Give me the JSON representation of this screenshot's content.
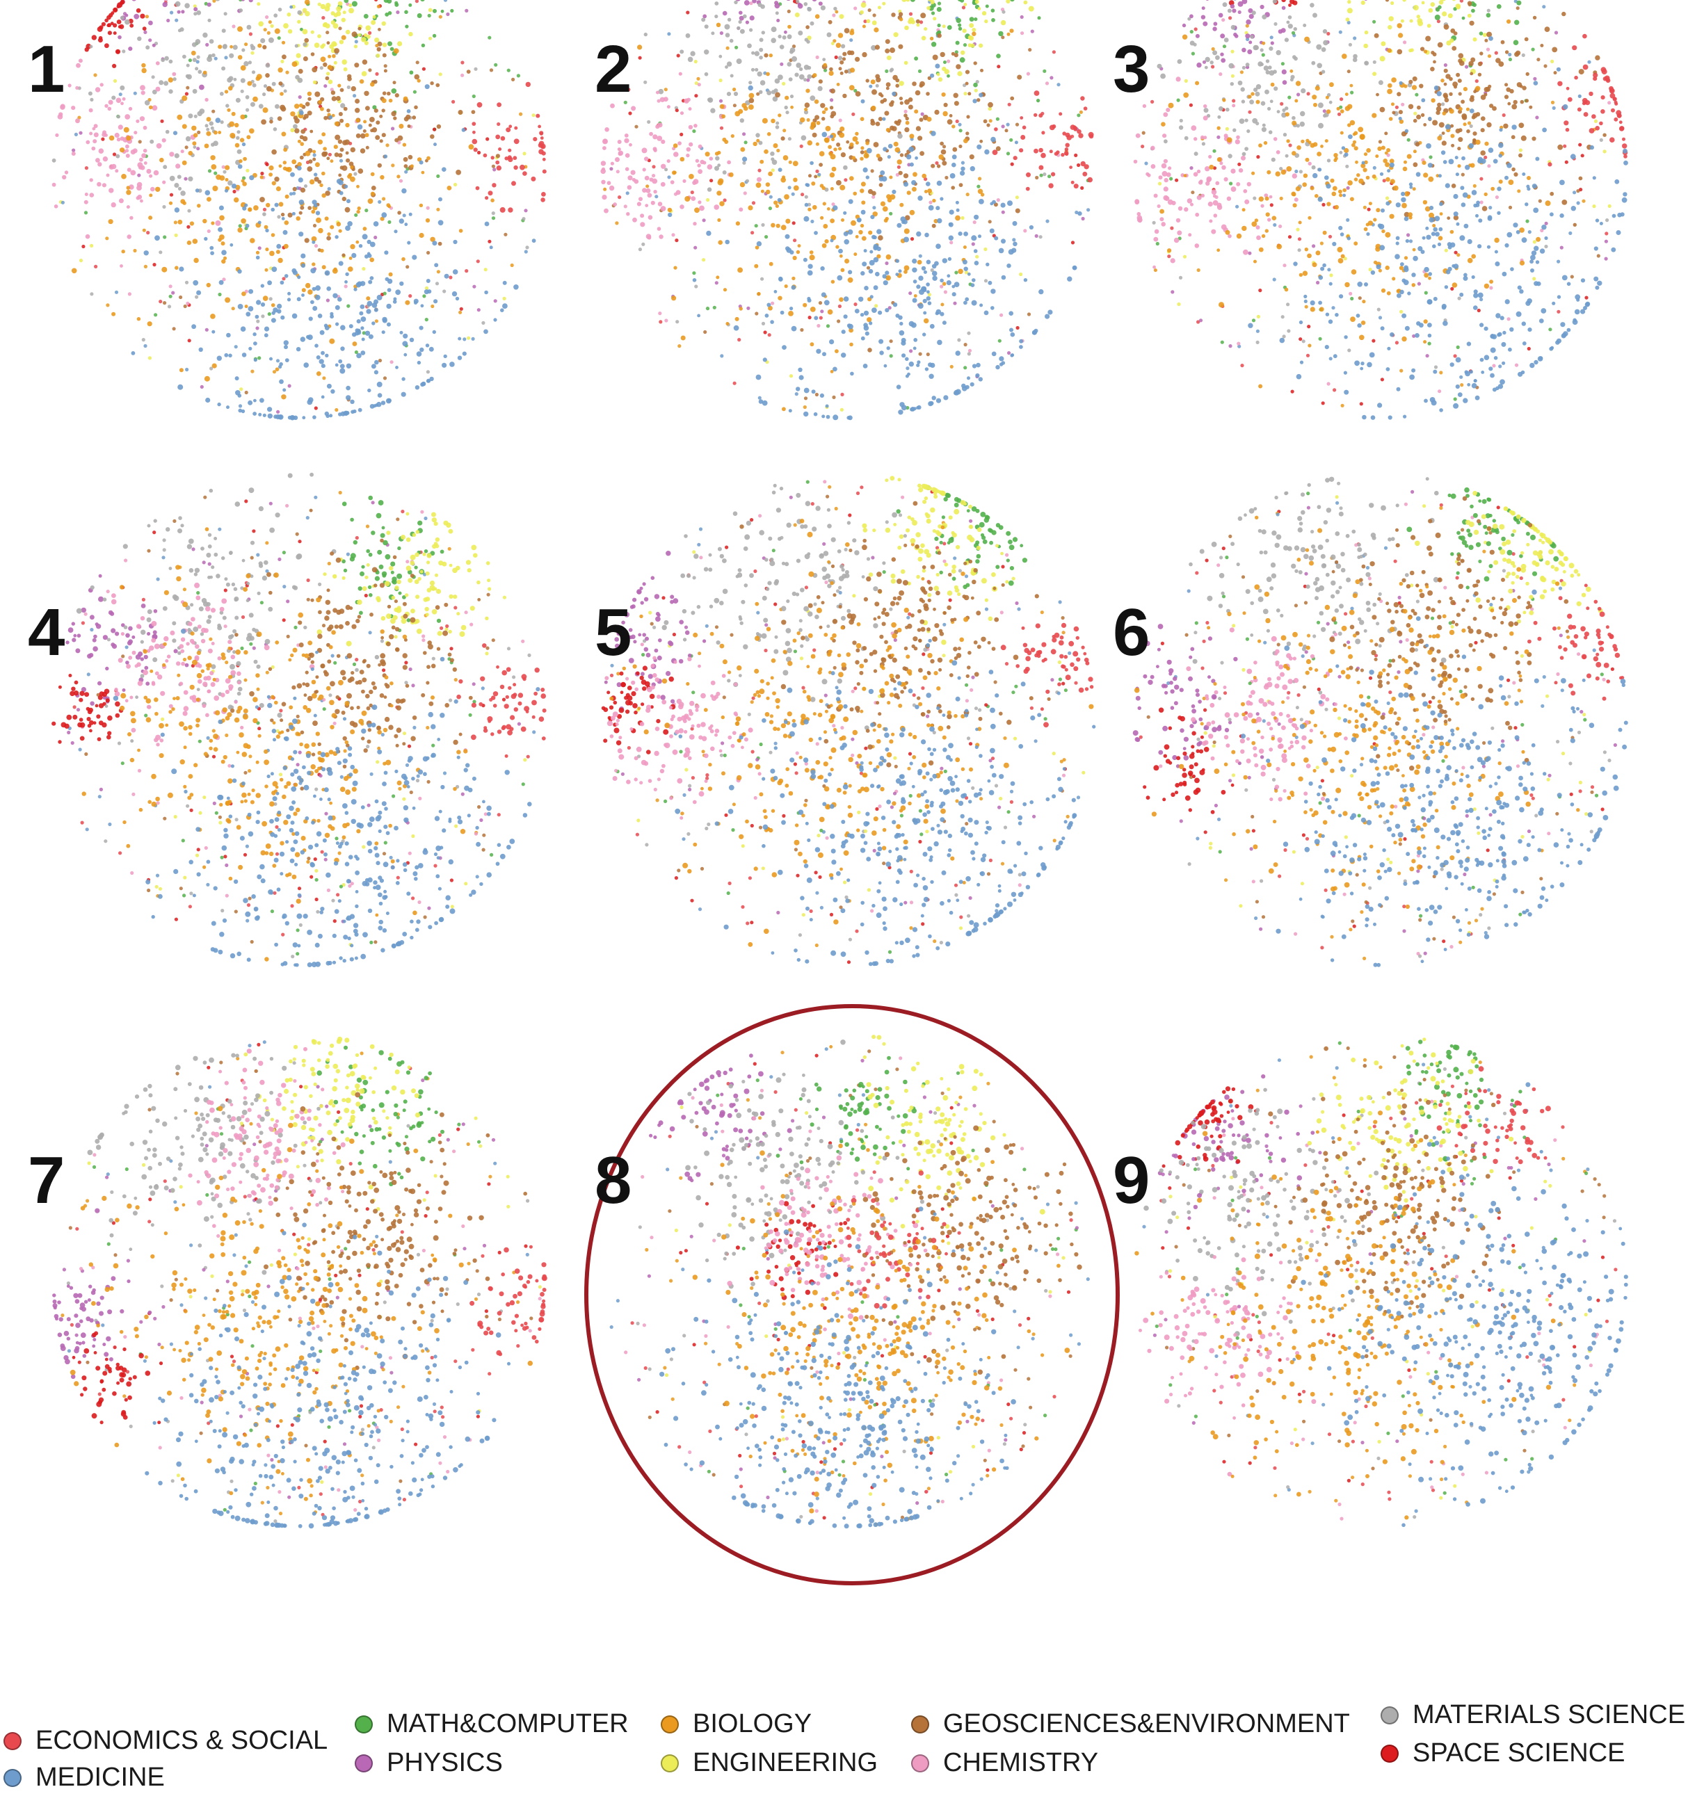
{
  "chart_data": {
    "type": "scatter",
    "title": "",
    "xlabel": "",
    "ylabel": "",
    "grid": false,
    "legend_placement": "bottom",
    "highlighted_panel": "8",
    "categories": [
      {
        "key": "econ",
        "name": "ECONOMICS & SOCIAL",
        "color": "#e8494f"
      },
      {
        "key": "med",
        "name": "MEDICINE",
        "color": "#6e9ccc"
      },
      {
        "key": "math",
        "name": "MATH&COMPUTER",
        "color": "#53b04b"
      },
      {
        "key": "phys",
        "name": "PHYSICS",
        "color": "#b868b4"
      },
      {
        "key": "bio",
        "name": "BIOLOGY",
        "color": "#e99a1f"
      },
      {
        "key": "eng",
        "name": "ENGINEERING",
        "color": "#ecec59"
      },
      {
        "key": "geo",
        "name": "GEOSCIENCES&ENVIRONMENT",
        "color": "#b5733a"
      },
      {
        "key": "chem",
        "name": "CHEMISTRY",
        "color": "#ef9cc3"
      },
      {
        "key": "mat",
        "name": "MATERIALS SCIENCE",
        "color": "#adadad"
      },
      {
        "key": "space",
        "name": "SPACE SCIENCE",
        "color": "#dc1c1e"
      }
    ],
    "panels": [
      {
        "label": "1",
        "clusters": [
          {
            "cat": "phys",
            "x": -0.55,
            "y": 0.78,
            "s": 0.12,
            "n": 70
          },
          {
            "cat": "space",
            "x": -0.75,
            "y": 0.62,
            "s": 0.08,
            "n": 45
          },
          {
            "cat": "math",
            "x": 0.35,
            "y": 0.7,
            "s": 0.14,
            "n": 70
          },
          {
            "cat": "eng",
            "x": 0.15,
            "y": 0.62,
            "s": 0.15,
            "n": 110
          },
          {
            "cat": "mat",
            "x": -0.35,
            "y": 0.35,
            "s": 0.2,
            "n": 130
          },
          {
            "cat": "chem",
            "x": -0.72,
            "y": 0.1,
            "s": 0.14,
            "n": 110
          },
          {
            "cat": "geo",
            "x": 0.2,
            "y": 0.2,
            "s": 0.2,
            "n": 170
          },
          {
            "cat": "bio",
            "x": -0.1,
            "y": -0.05,
            "s": 0.3,
            "n": 260
          },
          {
            "cat": "econ",
            "x": 0.85,
            "y": 0.05,
            "s": 0.1,
            "n": 50
          },
          {
            "cat": "med",
            "x": 0.15,
            "y": -0.55,
            "s": 0.32,
            "n": 330
          }
        ]
      },
      {
        "label": "2",
        "clusters": [
          {
            "cat": "space",
            "x": -0.45,
            "y": 0.88,
            "s": 0.1,
            "n": 55
          },
          {
            "cat": "phys",
            "x": -0.35,
            "y": 0.75,
            "s": 0.12,
            "n": 60
          },
          {
            "cat": "math",
            "x": 0.45,
            "y": 0.65,
            "s": 0.12,
            "n": 60
          },
          {
            "cat": "eng",
            "x": 0.3,
            "y": 0.7,
            "s": 0.18,
            "n": 110
          },
          {
            "cat": "mat",
            "x": -0.3,
            "y": 0.4,
            "s": 0.22,
            "n": 130
          },
          {
            "cat": "chem",
            "x": -0.75,
            "y": 0.05,
            "s": 0.14,
            "n": 110
          },
          {
            "cat": "geo",
            "x": 0.2,
            "y": 0.25,
            "s": 0.2,
            "n": 170
          },
          {
            "cat": "bio",
            "x": -0.1,
            "y": -0.05,
            "s": 0.3,
            "n": 260
          },
          {
            "cat": "econ",
            "x": 0.85,
            "y": 0.12,
            "s": 0.1,
            "n": 50
          },
          {
            "cat": "med",
            "x": 0.25,
            "y": -0.45,
            "s": 0.32,
            "n": 330
          }
        ]
      },
      {
        "label": "3",
        "clusters": [
          {
            "cat": "space",
            "x": -0.4,
            "y": 0.8,
            "s": 0.1,
            "n": 55
          },
          {
            "cat": "phys",
            "x": -0.6,
            "y": 0.65,
            "s": 0.12,
            "n": 60
          },
          {
            "cat": "math",
            "x": 0.4,
            "y": 0.78,
            "s": 0.12,
            "n": 60
          },
          {
            "cat": "eng",
            "x": 0.15,
            "y": 0.75,
            "s": 0.15,
            "n": 110
          },
          {
            "cat": "mat",
            "x": -0.4,
            "y": 0.35,
            "s": 0.2,
            "n": 130
          },
          {
            "cat": "chem",
            "x": -0.7,
            "y": -0.05,
            "s": 0.14,
            "n": 110
          },
          {
            "cat": "geo",
            "x": 0.35,
            "y": 0.3,
            "s": 0.2,
            "n": 170
          },
          {
            "cat": "econ",
            "x": 0.9,
            "y": 0.3,
            "s": 0.1,
            "n": 55
          },
          {
            "cat": "bio",
            "x": -0.1,
            "y": -0.05,
            "s": 0.3,
            "n": 260
          },
          {
            "cat": "med",
            "x": 0.35,
            "y": -0.4,
            "s": 0.32,
            "n": 330
          }
        ]
      },
      {
        "label": "4",
        "clusters": [
          {
            "cat": "phys",
            "x": -0.75,
            "y": 0.3,
            "s": 0.12,
            "n": 60
          },
          {
            "cat": "space",
            "x": -0.85,
            "y": 0.05,
            "s": 0.08,
            "n": 45
          },
          {
            "cat": "math",
            "x": 0.35,
            "y": 0.6,
            "s": 0.12,
            "n": 60
          },
          {
            "cat": "eng",
            "x": 0.5,
            "y": 0.55,
            "s": 0.15,
            "n": 100
          },
          {
            "cat": "mat",
            "x": -0.35,
            "y": 0.45,
            "s": 0.2,
            "n": 130
          },
          {
            "cat": "chem",
            "x": -0.45,
            "y": 0.2,
            "s": 0.14,
            "n": 110
          },
          {
            "cat": "geo",
            "x": 0.25,
            "y": 0.2,
            "s": 0.2,
            "n": 170
          },
          {
            "cat": "econ",
            "x": 0.85,
            "y": 0.05,
            "s": 0.1,
            "n": 50
          },
          {
            "cat": "bio",
            "x": -0.15,
            "y": -0.1,
            "s": 0.3,
            "n": 260
          },
          {
            "cat": "med",
            "x": 0.2,
            "y": -0.55,
            "s": 0.32,
            "n": 330
          }
        ]
      },
      {
        "label": "5",
        "clusters": [
          {
            "cat": "phys",
            "x": -0.8,
            "y": 0.35,
            "s": 0.12,
            "n": 60
          },
          {
            "cat": "space",
            "x": -0.85,
            "y": 0.05,
            "s": 0.08,
            "n": 45
          },
          {
            "cat": "math",
            "x": 0.5,
            "y": 0.75,
            "s": 0.12,
            "n": 60
          },
          {
            "cat": "eng",
            "x": 0.35,
            "y": 0.75,
            "s": 0.15,
            "n": 100
          },
          {
            "cat": "mat",
            "x": -0.3,
            "y": 0.55,
            "s": 0.2,
            "n": 130
          },
          {
            "cat": "chem",
            "x": -0.65,
            "y": -0.05,
            "s": 0.14,
            "n": 110
          },
          {
            "cat": "geo",
            "x": 0.25,
            "y": 0.35,
            "s": 0.2,
            "n": 170
          },
          {
            "cat": "econ",
            "x": 0.85,
            "y": 0.25,
            "s": 0.1,
            "n": 50
          },
          {
            "cat": "bio",
            "x": -0.1,
            "y": -0.05,
            "s": 0.3,
            "n": 260
          },
          {
            "cat": "med",
            "x": 0.3,
            "y": -0.45,
            "s": 0.32,
            "n": 330
          }
        ]
      },
      {
        "label": "6",
        "clusters": [
          {
            "cat": "phys",
            "x": -0.8,
            "y": 0.1,
            "s": 0.12,
            "n": 60
          },
          {
            "cat": "space",
            "x": -0.75,
            "y": -0.2,
            "s": 0.08,
            "n": 45
          },
          {
            "cat": "math",
            "x": 0.45,
            "y": 0.78,
            "s": 0.12,
            "n": 60
          },
          {
            "cat": "eng",
            "x": 0.6,
            "y": 0.65,
            "s": 0.15,
            "n": 100
          },
          {
            "cat": "mat",
            "x": -0.3,
            "y": 0.6,
            "s": 0.2,
            "n": 130
          },
          {
            "cat": "chem",
            "x": -0.45,
            "y": 0.0,
            "s": 0.14,
            "n": 110
          },
          {
            "cat": "geo",
            "x": 0.25,
            "y": 0.35,
            "s": 0.2,
            "n": 170
          },
          {
            "cat": "econ",
            "x": 0.85,
            "y": 0.3,
            "s": 0.1,
            "n": 50
          },
          {
            "cat": "bio",
            "x": -0.05,
            "y": -0.05,
            "s": 0.3,
            "n": 260
          },
          {
            "cat": "med",
            "x": 0.3,
            "y": -0.4,
            "s": 0.32,
            "n": 330
          }
        ]
      },
      {
        "label": "7",
        "clusters": [
          {
            "cat": "phys",
            "x": -0.85,
            "y": -0.15,
            "s": 0.12,
            "n": 60
          },
          {
            "cat": "space",
            "x": -0.75,
            "y": -0.4,
            "s": 0.08,
            "n": 45
          },
          {
            "cat": "math",
            "x": 0.35,
            "y": 0.65,
            "s": 0.12,
            "n": 60
          },
          {
            "cat": "eng",
            "x": 0.15,
            "y": 0.75,
            "s": 0.15,
            "n": 100
          },
          {
            "cat": "mat",
            "x": -0.4,
            "y": 0.55,
            "s": 0.2,
            "n": 130
          },
          {
            "cat": "chem",
            "x": -0.15,
            "y": 0.55,
            "s": 0.14,
            "n": 110
          },
          {
            "cat": "geo",
            "x": 0.3,
            "y": 0.2,
            "s": 0.2,
            "n": 170
          },
          {
            "cat": "econ",
            "x": 0.9,
            "y": -0.1,
            "s": 0.1,
            "n": 50
          },
          {
            "cat": "bio",
            "x": -0.1,
            "y": -0.15,
            "s": 0.3,
            "n": 260
          },
          {
            "cat": "med",
            "x": 0.1,
            "y": -0.6,
            "s": 0.32,
            "n": 330
          }
        ]
      },
      {
        "label": "8",
        "clusters": [
          {
            "cat": "phys",
            "x": -0.55,
            "y": 0.65,
            "s": 0.12,
            "n": 60
          },
          {
            "cat": "space",
            "x": -0.2,
            "y": 0.15,
            "s": 0.1,
            "n": 50
          },
          {
            "cat": "math",
            "x": 0.05,
            "y": 0.65,
            "s": 0.1,
            "n": 60
          },
          {
            "cat": "eng",
            "x": 0.35,
            "y": 0.6,
            "s": 0.15,
            "n": 100
          },
          {
            "cat": "mat",
            "x": -0.3,
            "y": 0.45,
            "s": 0.2,
            "n": 130
          },
          {
            "cat": "chem",
            "x": -0.1,
            "y": 0.15,
            "s": 0.14,
            "n": 110
          },
          {
            "cat": "geo",
            "x": 0.5,
            "y": 0.2,
            "s": 0.2,
            "n": 170
          },
          {
            "cat": "econ",
            "x": 0.15,
            "y": 0.1,
            "s": 0.1,
            "n": 50
          },
          {
            "cat": "bio",
            "x": 0.1,
            "y": -0.2,
            "s": 0.3,
            "n": 260
          },
          {
            "cat": "med",
            "x": -0.05,
            "y": -0.55,
            "s": 0.3,
            "n": 330
          }
        ]
      },
      {
        "label": "9",
        "clusters": [
          {
            "cat": "phys",
            "x": -0.6,
            "y": 0.55,
            "s": 0.12,
            "n": 60
          },
          {
            "cat": "space",
            "x": -0.7,
            "y": 0.65,
            "s": 0.1,
            "n": 55
          },
          {
            "cat": "math",
            "x": 0.3,
            "y": 0.75,
            "s": 0.12,
            "n": 60
          },
          {
            "cat": "eng",
            "x": 0.1,
            "y": 0.65,
            "s": 0.15,
            "n": 100
          },
          {
            "cat": "mat",
            "x": -0.5,
            "y": 0.3,
            "s": 0.2,
            "n": 130
          },
          {
            "cat": "chem",
            "x": -0.6,
            "y": -0.2,
            "s": 0.14,
            "n": 110
          },
          {
            "cat": "geo",
            "x": 0.05,
            "y": 0.3,
            "s": 0.2,
            "n": 170
          },
          {
            "cat": "econ",
            "x": 0.5,
            "y": 0.65,
            "s": 0.1,
            "n": 50
          },
          {
            "cat": "bio",
            "x": -0.1,
            "y": -0.15,
            "s": 0.3,
            "n": 260
          },
          {
            "cat": "med",
            "x": 0.45,
            "y": -0.2,
            "s": 0.3,
            "n": 330
          }
        ]
      }
    ]
  }
}
